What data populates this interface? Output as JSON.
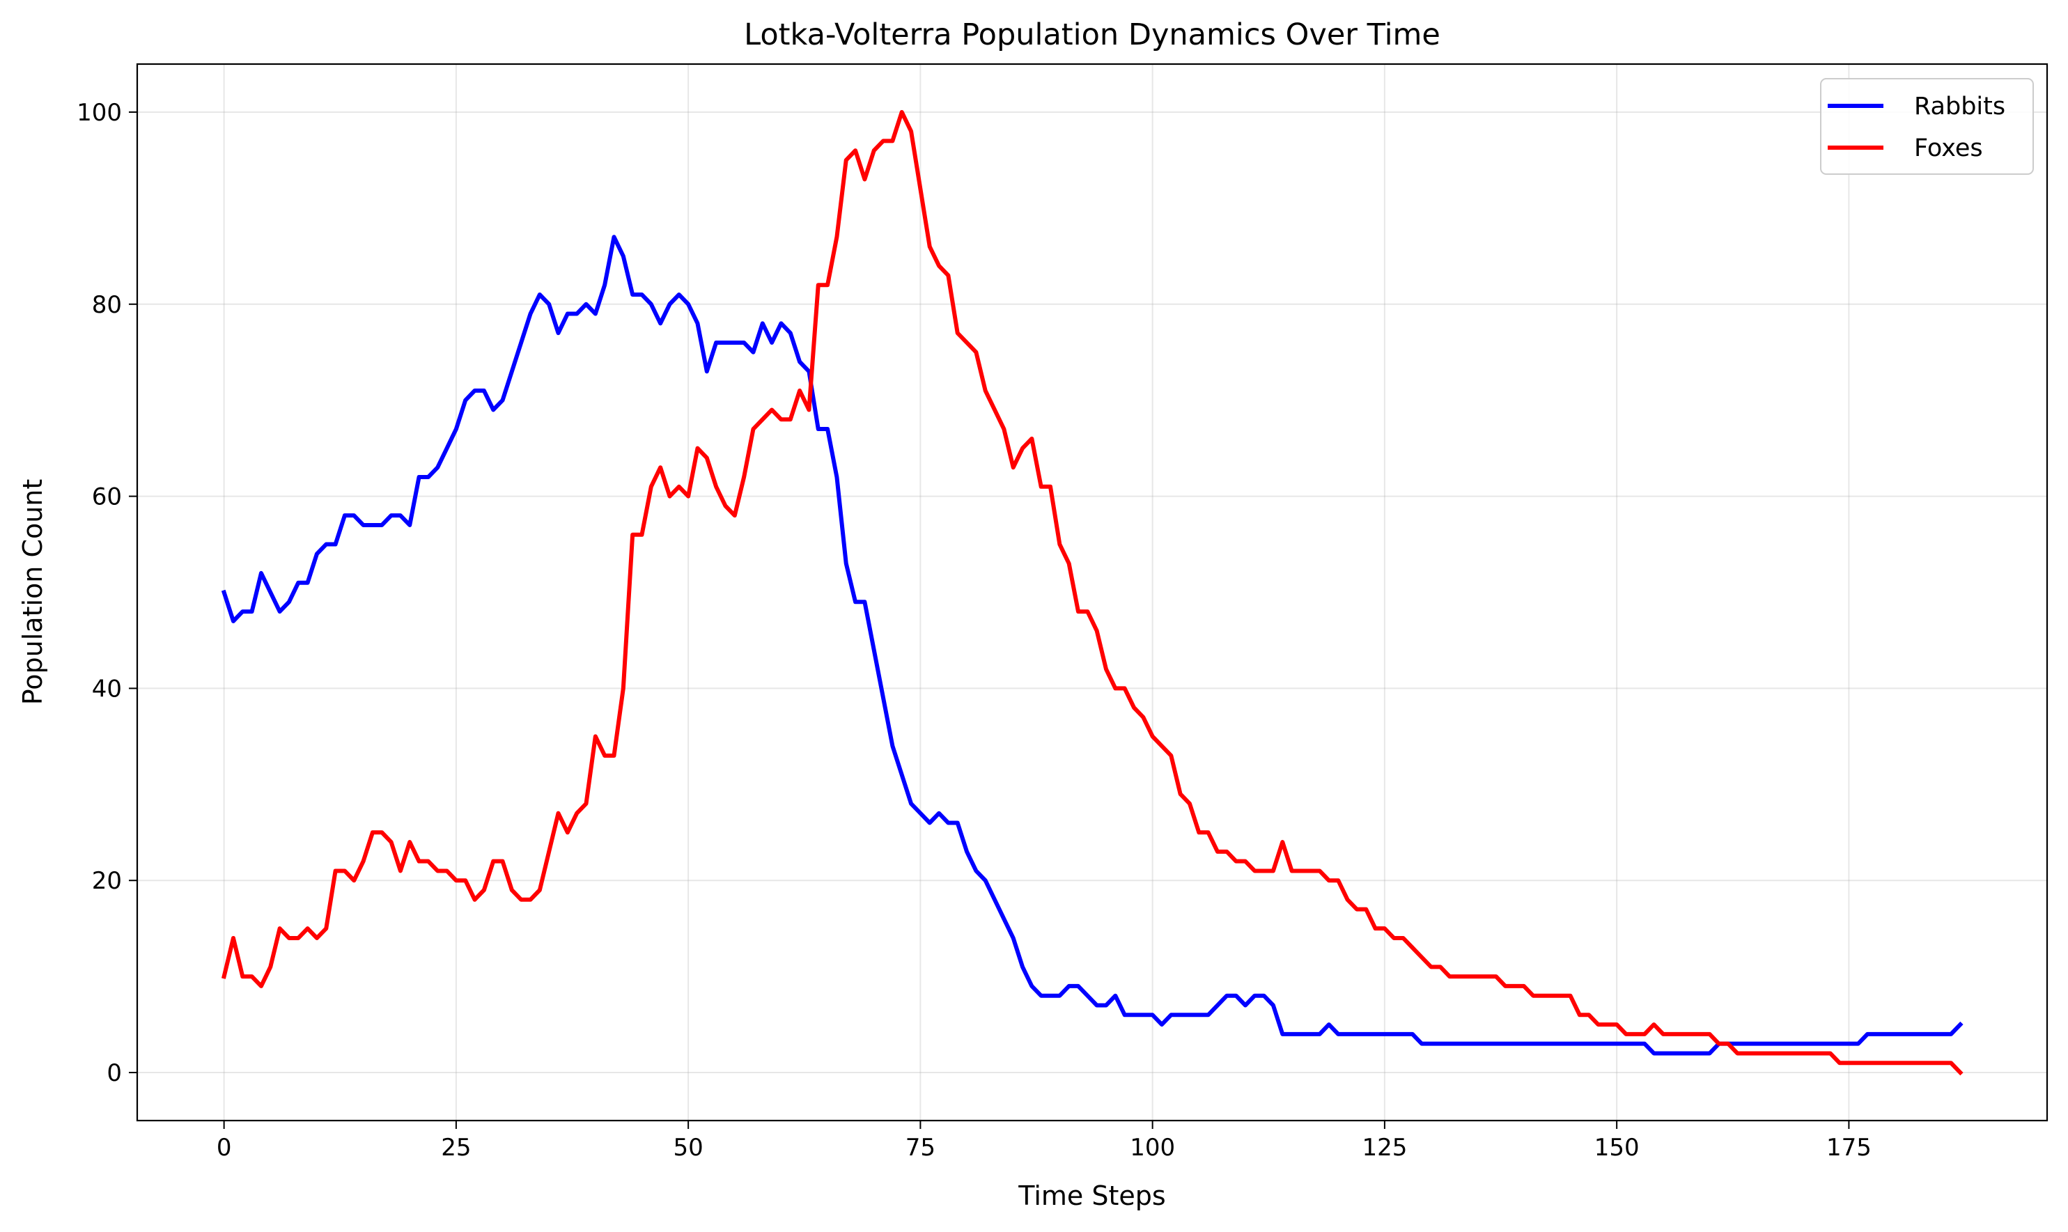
{
  "chart_data": {
    "type": "line",
    "title": "Lotka-Volterra Population Dynamics Over Time",
    "xlabel": "Time Steps",
    "ylabel": "Population Count",
    "xlim": [
      -9.35,
      196.35
    ],
    "ylim": [
      -5,
      105
    ],
    "xticks": [
      0,
      25,
      50,
      75,
      100,
      125,
      150,
      175
    ],
    "yticks": [
      0,
      20,
      40,
      60,
      80,
      100
    ],
    "grid": true,
    "legend_position": "top-right",
    "series": [
      {
        "name": "Rabbits",
        "color": "#0000ff",
        "values": [
          50,
          47,
          48,
          48,
          52,
          50,
          48,
          49,
          51,
          51,
          54,
          55,
          55,
          58,
          58,
          57,
          57,
          57,
          58,
          58,
          57,
          62,
          62,
          63,
          65,
          67,
          70,
          71,
          71,
          69,
          70,
          73,
          76,
          79,
          81,
          80,
          77,
          79,
          79,
          80,
          79,
          82,
          87,
          85,
          81,
          81,
          80,
          78,
          80,
          81,
          80,
          78,
          73,
          76,
          76,
          76,
          76,
          75,
          78,
          76,
          78,
          77,
          74,
          73,
          67,
          67,
          62,
          53,
          49,
          49,
          44,
          39,
          34,
          31,
          28,
          27,
          26,
          27,
          26,
          26,
          23,
          21,
          20,
          18,
          16,
          14,
          11,
          9,
          8,
          8,
          8,
          9,
          9,
          8,
          7,
          7,
          8,
          6,
          6,
          6,
          6,
          5,
          6,
          6,
          6,
          6,
          6,
          7,
          8,
          8,
          7,
          8,
          8,
          7,
          4,
          4,
          4,
          4,
          4,
          5,
          4,
          4,
          4,
          4,
          4,
          4,
          4,
          4,
          4,
          3,
          3,
          3,
          3,
          3,
          3,
          3,
          3,
          3,
          3,
          3,
          3,
          3,
          3,
          3,
          3,
          3,
          3,
          3,
          3,
          3,
          3,
          3,
          3,
          3,
          2,
          2,
          2,
          2,
          2,
          2,
          2,
          3,
          3,
          3,
          3,
          3,
          3,
          3,
          3,
          3,
          3,
          3,
          3,
          3,
          3,
          3,
          3,
          4,
          4,
          4,
          4,
          4,
          4,
          4,
          4,
          4,
          4,
          5
        ]
      },
      {
        "name": "Foxes",
        "color": "#ff0000",
        "values": [
          10,
          14,
          10,
          10,
          9,
          11,
          15,
          14,
          14,
          15,
          14,
          15,
          21,
          21,
          20,
          22,
          25,
          25,
          24,
          21,
          24,
          22,
          22,
          21,
          21,
          20,
          20,
          18,
          19,
          22,
          22,
          19,
          18,
          18,
          19,
          23,
          27,
          25,
          27,
          28,
          35,
          33,
          33,
          40,
          56,
          56,
          61,
          63,
          60,
          61,
          60,
          65,
          64,
          61,
          59,
          58,
          62,
          67,
          68,
          69,
          68,
          68,
          71,
          69,
          82,
          82,
          87,
          95,
          96,
          93,
          96,
          97,
          97,
          100,
          98,
          92,
          86,
          84,
          83,
          77,
          76,
          75,
          71,
          69,
          67,
          63,
          65,
          66,
          61,
          61,
          55,
          53,
          48,
          48,
          46,
          42,
          40,
          40,
          38,
          37,
          35,
          34,
          33,
          29,
          28,
          25,
          25,
          23,
          23,
          22,
          22,
          21,
          21,
          21,
          24,
          21,
          21,
          21,
          21,
          20,
          20,
          18,
          17,
          17,
          15,
          15,
          14,
          14,
          13,
          12,
          11,
          11,
          10,
          10,
          10,
          10,
          10,
          10,
          9,
          9,
          9,
          8,
          8,
          8,
          8,
          8,
          6,
          6,
          5,
          5,
          5,
          4,
          4,
          4,
          5,
          4,
          4,
          4,
          4,
          4,
          4,
          3,
          3,
          2,
          2,
          2,
          2,
          2,
          2,
          2,
          2,
          2,
          2,
          2,
          1,
          1,
          1,
          1,
          1,
          1,
          1,
          1,
          1,
          1,
          1,
          1,
          1,
          0
        ]
      }
    ]
  }
}
